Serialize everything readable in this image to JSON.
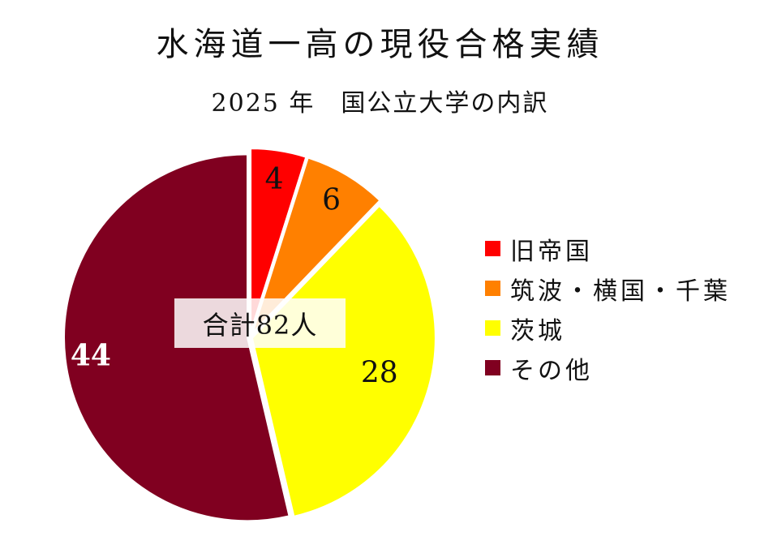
{
  "title": "水海道一高の現役合格実績",
  "subtitle": "2025 年　国公立大学の内訳",
  "total_label": "合計82人",
  "chart_data": {
    "type": "pie",
    "title": "水海道一高の現役合格実績",
    "subtitle": "2025 年　国公立大学の内訳",
    "categories": [
      "旧帝国",
      "筑波・横国・千葉",
      "茨城",
      "その他"
    ],
    "values": [
      4,
      6,
      28,
      44
    ],
    "total": 82,
    "colors": [
      "#ff0000",
      "#ff8000",
      "#ffff00",
      "#800020"
    ],
    "label_colors": [
      "#111111",
      "#111111",
      "#111111",
      "#ffffff"
    ],
    "start_angle": "12 o'clock, clockwise",
    "legend": "right"
  }
}
